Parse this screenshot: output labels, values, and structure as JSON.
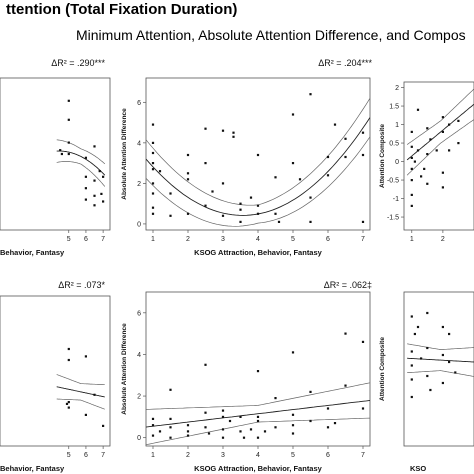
{
  "header": {
    "title": "ttention (Total Fixation Duration)",
    "subtitle": "Minimum Attention, Absolute Attention Difference, and Compos"
  },
  "chart_data": [
    {
      "id": "top-left",
      "type": "scatter",
      "annotation": "ΔR² = .290***",
      "xlabel": "Behavior, Fantasy",
      "ylabel": "",
      "x_ticks": [
        5,
        6,
        7
      ],
      "y_ticks": [],
      "xlim": [
        1,
        7.4
      ],
      "ylim": [
        -1.2,
        6.8
      ],
      "points": [
        [
          5,
          5.6
        ],
        [
          5,
          4.6
        ],
        [
          5,
          3.4
        ],
        [
          5,
          2.8
        ],
        [
          6,
          2.6
        ],
        [
          6,
          1.6
        ],
        [
          6,
          1.0
        ],
        [
          6,
          0.4
        ],
        [
          6.5,
          3.2
        ],
        [
          6.5,
          1.4
        ],
        [
          6.5,
          0.6
        ],
        [
          6.5,
          0.1
        ],
        [
          6.8,
          1.9
        ],
        [
          6.9,
          0.7
        ],
        [
          7,
          1.6
        ],
        [
          7,
          0.3
        ],
        [
          4.6,
          2.8
        ],
        [
          4.5,
          3.0
        ]
      ],
      "fit": {
        "kind": "quadratic",
        "coef": [
          -0.6,
          1.6,
          -0.18
        ],
        "band": 0.4
      },
      "x_range": [
        4.3,
        7.1
      ]
    },
    {
      "id": "top-middle",
      "type": "scatter",
      "annotation": "ΔR² = .204***",
      "xlabel": "KSOG Attraction, Behavior, Fantasy",
      "ylabel": "Absolute Attention Difference",
      "x_ticks": [
        1,
        2,
        3,
        4,
        5,
        6,
        7
      ],
      "y_ticks": [
        0,
        2,
        4,
        6
      ],
      "xlim": [
        0.8,
        7.2
      ],
      "ylim": [
        -0.3,
        7.2
      ],
      "points": [
        [
          1,
          4.9
        ],
        [
          1,
          4.0
        ],
        [
          1,
          3.5
        ],
        [
          1,
          3.0
        ],
        [
          1,
          2.7
        ],
        [
          1,
          2.0
        ],
        [
          1,
          1.5
        ],
        [
          1,
          0.8
        ],
        [
          1,
          0.5
        ],
        [
          1.2,
          2.6
        ],
        [
          1.5,
          1.5
        ],
        [
          1.5,
          0.4
        ],
        [
          2,
          2.5
        ],
        [
          2,
          3.4
        ],
        [
          2,
          0.5
        ],
        [
          2.5,
          4.7
        ],
        [
          2.5,
          3.0
        ],
        [
          2.5,
          0.9
        ],
        [
          2.7,
          1.6
        ],
        [
          3,
          4.6
        ],
        [
          3,
          2.0
        ],
        [
          3,
          0.4
        ],
        [
          3.3,
          4.5
        ],
        [
          3.5,
          1.0
        ],
        [
          3.5,
          0.7
        ],
        [
          3.8,
          1.3
        ],
        [
          3.5,
          0.1
        ],
        [
          4,
          3.4
        ],
        [
          4,
          0.5
        ],
        [
          4,
          0.9
        ],
        [
          4.5,
          2.3
        ],
        [
          4.5,
          0.5
        ],
        [
          4.6,
          0.1
        ],
        [
          5,
          5.4
        ],
        [
          5,
          3.0
        ],
        [
          5.2,
          2.2
        ],
        [
          5.5,
          1.3
        ],
        [
          5.5,
          0.1
        ],
        [
          6,
          2.4
        ],
        [
          6,
          3.3
        ],
        [
          6.2,
          4.9
        ],
        [
          6.5,
          4.2
        ],
        [
          6.5,
          3.3
        ],
        [
          7,
          4.5
        ],
        [
          7,
          3.4
        ],
        [
          7,
          0.1
        ],
        [
          3.3,
          4.3
        ],
        [
          2,
          2.2
        ],
        [
          5.5,
          6.4
        ]
      ],
      "fit": {
        "kind": "quadratic",
        "coef": [
          5.05,
          -2.6,
          0.365
        ],
        "band": 0.45
      },
      "x_range": [
        0.8,
        7.2
      ]
    },
    {
      "id": "top-right",
      "type": "scatter",
      "annotation": "",
      "xlabel": "",
      "ylabel": "Attention Composite",
      "x_ticks": [
        1,
        2
      ],
      "y_ticks": [
        -1.5,
        -1.0,
        -0.5,
        0.0,
        0.5,
        1.0,
        1.5,
        2.0
      ],
      "xlim": [
        0.75,
        3.0
      ],
      "ylim": [
        -1.85,
        2.15
      ],
      "points": [
        [
          1,
          0.8
        ],
        [
          1,
          0.4
        ],
        [
          1,
          0.1
        ],
        [
          1,
          -0.2
        ],
        [
          1,
          -0.5
        ],
        [
          1,
          -0.9
        ],
        [
          1,
          -1.2
        ],
        [
          1.1,
          0.0
        ],
        [
          1.2,
          1.4
        ],
        [
          1.2,
          0.3
        ],
        [
          1.3,
          -0.4
        ],
        [
          1.5,
          0.9
        ],
        [
          1.5,
          0.2
        ],
        [
          1.5,
          -0.6
        ],
        [
          1.6,
          0.6
        ],
        [
          2,
          0.8
        ],
        [
          2,
          1.2
        ],
        [
          2,
          -0.3
        ],
        [
          2,
          -0.7
        ],
        [
          2.2,
          1.0
        ],
        [
          2.2,
          0.3
        ],
        [
          2.5,
          1.1
        ],
        [
          2.5,
          0.5
        ],
        [
          1.8,
          0.3
        ],
        [
          1.4,
          -0.2
        ]
      ],
      "fit": {
        "kind": "quadratic",
        "coef": [
          -0.55,
          0.7,
          0.0
        ],
        "band": 0.3
      },
      "x_range": [
        0.85,
        3.0
      ]
    },
    {
      "id": "bottom-left",
      "type": "scatter",
      "annotation": "ΔR² = .073*",
      "xlabel": "Behavior, Fantasy",
      "ylabel": "",
      "x_ticks": [
        5,
        6,
        7
      ],
      "y_ticks": [],
      "xlim": [
        1,
        7.4
      ],
      "ylim": [
        -1.0,
        7.2
      ],
      "points": [
        [
          5,
          4.3
        ],
        [
          6,
          3.9
        ],
        [
          5,
          3.7
        ],
        [
          5,
          1.4
        ],
        [
          5,
          1.1
        ],
        [
          6.5,
          1.8
        ],
        [
          6,
          0.7
        ],
        [
          7,
          0.1
        ],
        [
          4.9,
          1.3
        ]
      ],
      "fit": {
        "kind": "quadratic",
        "coef": [
          3.1,
          -0.2,
          0.0
        ],
        "band": 0.45
      },
      "x_range": [
        4.3,
        7.1
      ]
    },
    {
      "id": "bottom-middle",
      "type": "scatter",
      "annotation": "ΔR² = .062‡",
      "xlabel": "KSOG Attraction, Behavior, Fantasy",
      "ylabel": "Absolute Attention Difference",
      "x_ticks": [
        1,
        2,
        3,
        4,
        5,
        6,
        7
      ],
      "y_ticks": [
        0,
        2,
        4,
        6
      ],
      "xlim": [
        0.8,
        7.2
      ],
      "ylim": [
        -0.4,
        7.0
      ],
      "points": [
        [
          1,
          0.9
        ],
        [
          1,
          0.6
        ],
        [
          1,
          0.1
        ],
        [
          1.2,
          0.3
        ],
        [
          1.5,
          2.3
        ],
        [
          1.5,
          0.9
        ],
        [
          1.5,
          0.5
        ],
        [
          1.5,
          0.0
        ],
        [
          2,
          0.3
        ],
        [
          2,
          0.6
        ],
        [
          2,
          0.1
        ],
        [
          2.5,
          3.5
        ],
        [
          2.5,
          1.2
        ],
        [
          2.5,
          0.5
        ],
        [
          2.6,
          0.2
        ],
        [
          3,
          1.0
        ],
        [
          3,
          1.3
        ],
        [
          3,
          0.0
        ],
        [
          3,
          0.4
        ],
        [
          3.2,
          0.8
        ],
        [
          3.5,
          0.3
        ],
        [
          3.5,
          1.0
        ],
        [
          3.6,
          0.0
        ],
        [
          3.8,
          0.4
        ],
        [
          4,
          3.2
        ],
        [
          4,
          0.8
        ],
        [
          4,
          1.0
        ],
        [
          4,
          0.0
        ],
        [
          4.2,
          0.3
        ],
        [
          4.5,
          1.9
        ],
        [
          4.5,
          0.5
        ],
        [
          5,
          4.1
        ],
        [
          5,
          1.1
        ],
        [
          5,
          0.6
        ],
        [
          5,
          0.2
        ],
        [
          5.5,
          2.2
        ],
        [
          5.5,
          0.8
        ],
        [
          6,
          1.4
        ],
        [
          6,
          0.5
        ],
        [
          6.5,
          5.0
        ],
        [
          6.5,
          2.5
        ],
        [
          7,
          4.6
        ],
        [
          7,
          1.4
        ],
        [
          6.2,
          0.7
        ]
      ],
      "fit": {
        "kind": "quadratic",
        "coef": [
          0.35,
          0.2,
          0.0
        ],
        "band": 0.4
      },
      "x_range": [
        0.8,
        7.2
      ]
    },
    {
      "id": "bottom-right",
      "type": "scatter",
      "annotation": "",
      "xlabel": "KSO",
      "ylabel": "Attention Composite",
      "x_ticks": [],
      "y_ticks": [],
      "xlim": [
        0.75,
        3.0
      ],
      "ylim": [
        -2.2,
        2.2
      ],
      "points": [
        [
          1,
          1.5
        ],
        [
          1,
          0.5
        ],
        [
          1,
          0.1
        ],
        [
          1,
          -0.3
        ],
        [
          1,
          -0.8
        ],
        [
          1.2,
          1.2
        ],
        [
          1.3,
          0.3
        ],
        [
          1.5,
          1.6
        ],
        [
          1.5,
          0.6
        ],
        [
          1.5,
          -0.2
        ],
        [
          1.6,
          -0.6
        ],
        [
          2,
          1.2
        ],
        [
          2,
          0.4
        ],
        [
          2,
          -0.4
        ],
        [
          2.2,
          1.0
        ],
        [
          2.2,
          0.2
        ],
        [
          2.4,
          -0.1
        ],
        [
          1.1,
          1.0
        ]
      ],
      "fit": {
        "kind": "quadratic",
        "coef": [
          0.35,
          -0.05,
          0.0
        ],
        "band": 0.3
      },
      "x_range": [
        0.85,
        3.0
      ]
    }
  ]
}
